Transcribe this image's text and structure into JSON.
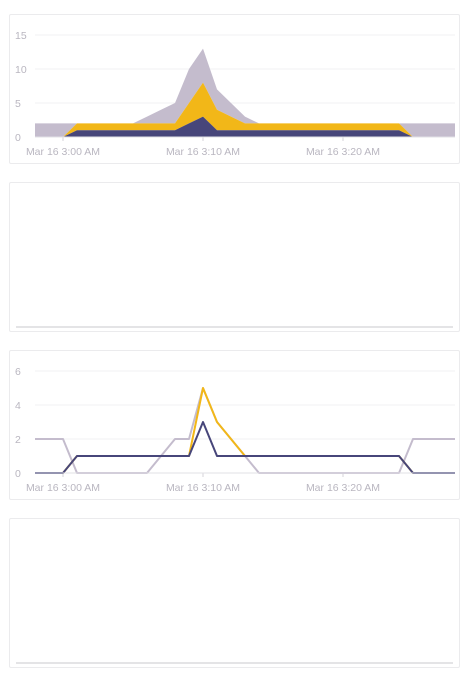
{
  "chart_data": [
    {
      "type": "area",
      "stacked": true,
      "x_ticks": [
        "Mar 16 3:00 AM",
        "Mar 16 3:10 AM",
        "Mar 16 3:20 AM"
      ],
      "y_ticks": [
        "15",
        "10",
        "5",
        "0"
      ],
      "ylim": [
        0,
        15
      ],
      "x_start": "Mar 16 2:58 AM",
      "x_end": "Mar 16 3:28 AM",
      "x": [
        "2:58",
        "2:59",
        "3:00",
        "3:01",
        "3:02",
        "3:03",
        "3:04",
        "3:05",
        "3:06",
        "3:07",
        "3:08",
        "3:09",
        "3:10",
        "3:11",
        "3:12",
        "3:13",
        "3:14",
        "3:15",
        "3:16",
        "3:17",
        "3:18",
        "3:19",
        "3:20",
        "3:21",
        "3:22",
        "3:23",
        "3:24",
        "3:25",
        "3:26",
        "3:27",
        "3:28"
      ],
      "series": [
        {
          "color": "#47467a",
          "values": [
            0,
            0,
            0,
            1,
            1,
            1,
            1,
            1,
            1,
            1,
            1,
            2,
            3,
            1,
            1,
            1,
            1,
            1,
            1,
            1,
            1,
            1,
            1,
            1,
            1,
            1,
            1,
            0,
            0,
            0,
            0
          ]
        },
        {
          "color": "#f2b718",
          "values": [
            0,
            0,
            0,
            1,
            1,
            1,
            1,
            1,
            1,
            1,
            1,
            3,
            5,
            3,
            2,
            1,
            1,
            1,
            1,
            1,
            1,
            1,
            1,
            1,
            1,
            1,
            1,
            0,
            0,
            0,
            0
          ]
        },
        {
          "color": "#c4bccd",
          "values": [
            2,
            2,
            2,
            0,
            0,
            0,
            0,
            0,
            1,
            2,
            3,
            5,
            5,
            3,
            2,
            1,
            0,
            0,
            0,
            0,
            0,
            0,
            0,
            0,
            0,
            0,
            0,
            2,
            2,
            2,
            2
          ]
        }
      ],
      "grid": true
    },
    {
      "type": "line",
      "x_ticks": [
        "Mar 16 3:00 AM",
        "Mar 16 3:10 AM",
        "Mar 16 3:20 AM"
      ],
      "y_ticks": [
        "6",
        "4",
        "2",
        "0"
      ],
      "ylim": [
        0,
        6
      ],
      "x": [
        "2:58",
        "2:59",
        "3:00",
        "3:01",
        "3:02",
        "3:03",
        "3:04",
        "3:05",
        "3:06",
        "3:07",
        "3:08",
        "3:09",
        "3:10",
        "3:11",
        "3:12",
        "3:13",
        "3:14",
        "3:15",
        "3:16",
        "3:17",
        "3:18",
        "3:19",
        "3:20",
        "3:21",
        "3:22",
        "3:23",
        "3:24",
        "3:25",
        "3:26",
        "3:27",
        "3:28"
      ],
      "series": [
        {
          "color": "#47467a",
          "values": [
            0,
            0,
            0,
            1,
            1,
            1,
            1,
            1,
            1,
            1,
            1,
            1,
            3,
            1,
            1,
            1,
            1,
            1,
            1,
            1,
            1,
            1,
            1,
            1,
            1,
            1,
            1,
            0,
            0,
            0,
            0
          ]
        },
        {
          "color": "#f2b718",
          "values": [
            0,
            0,
            0,
            1,
            1,
            1,
            1,
            1,
            1,
            1,
            1,
            1,
            5,
            3,
            2,
            1,
            1,
            1,
            1,
            1,
            1,
            1,
            1,
            1,
            1,
            1,
            1,
            0,
            0,
            0,
            0
          ]
        },
        {
          "color": "#c4bccd",
          "values": [
            2,
            2,
            2,
            0,
            0,
            0,
            0,
            0,
            0,
            1,
            2,
            2,
            5,
            3,
            2,
            1,
            0,
            0,
            0,
            0,
            0,
            0,
            0,
            0,
            0,
            0,
            0,
            2,
            2,
            2,
            2
          ]
        }
      ],
      "grid": true
    }
  ]
}
